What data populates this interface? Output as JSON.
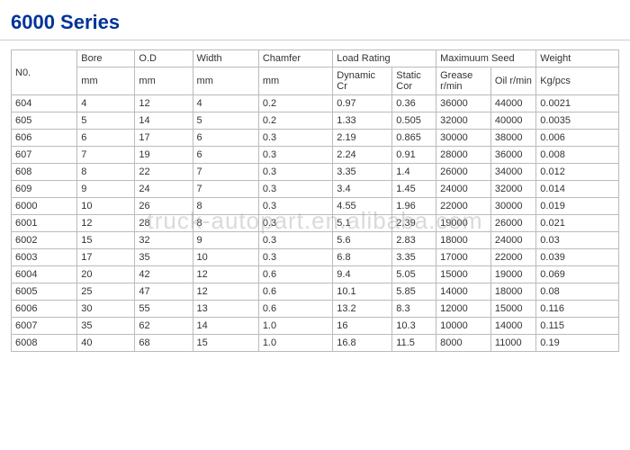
{
  "title": "6000 Series",
  "watermark": "truck-autopart.en.alibaba.com",
  "table": {
    "type": "table",
    "background_color": "#ffffff",
    "border_color": "#bbbbbb",
    "text_color": "#333333",
    "font_size_pt": 8,
    "header_row1": [
      "N0.",
      "Bore",
      "O.D",
      "Width",
      "Chamfer",
      "Load Rating",
      "",
      "Maximuum Seed",
      "",
      "Weight"
    ],
    "header_row2": [
      "",
      "mm",
      "mm",
      "mm",
      "mm",
      "Dynamic Cr",
      "Static Cor",
      "Grease r/min",
      "Oil r/min",
      "Kg/pcs"
    ],
    "colspans_row1": [
      1,
      1,
      1,
      1,
      1,
      2,
      0,
      2,
      0,
      1
    ],
    "col_widths_pct": [
      8,
      7,
      7,
      8,
      9,
      11,
      10,
      11,
      11,
      10
    ],
    "rows": [
      [
        "604",
        "4",
        "12",
        "4",
        "0.2",
        "0.97",
        "0.36",
        "36000",
        "44000",
        "0.0021"
      ],
      [
        "605",
        "5",
        "14",
        "5",
        "0.2",
        "1.33",
        "0.505",
        "32000",
        "40000",
        "0.0035"
      ],
      [
        "606",
        "6",
        "17",
        "6",
        "0.3",
        "2.19",
        "0.865",
        "30000",
        "38000",
        "0.006"
      ],
      [
        "607",
        "7",
        "19",
        "6",
        "0.3",
        "2.24",
        "0.91",
        "28000",
        "36000",
        "0.008"
      ],
      [
        "608",
        "8",
        "22",
        "7",
        "0.3",
        "3.35",
        "1.4",
        "26000",
        "34000",
        "0.012"
      ],
      [
        "609",
        "9",
        "24",
        "7",
        "0.3",
        "3.4",
        "1.45",
        "24000",
        "32000",
        "0.014"
      ],
      [
        "6000",
        "10",
        "26",
        "8",
        "0.3",
        "4.55",
        "1.96",
        "22000",
        "30000",
        "0.019"
      ],
      [
        "6001",
        "12",
        "28",
        "8",
        "0.3",
        "5.1",
        "2.39",
        "19000",
        "26000",
        "0.021"
      ],
      [
        "6002",
        "15",
        "32",
        "9",
        "0.3",
        "5.6",
        "2.83",
        "18000",
        "24000",
        "0.03"
      ],
      [
        "6003",
        "17",
        "35",
        "10",
        "0.3",
        "6.8",
        "3.35",
        "17000",
        "22000",
        "0.039"
      ],
      [
        "6004",
        "20",
        "42",
        "12",
        "0.6",
        "9.4",
        "5.05",
        "15000",
        "19000",
        "0.069"
      ],
      [
        "6005",
        "25",
        "47",
        "12",
        "0.6",
        "10.1",
        "5.85",
        "14000",
        "18000",
        "0.08"
      ],
      [
        "6006",
        "30",
        "55",
        "13",
        "0.6",
        "13.2",
        "8.3",
        "12000",
        "15000",
        "0.116"
      ],
      [
        "6007",
        "35",
        "62",
        "14",
        "1.0",
        "16",
        "10.3",
        "10000",
        "14000",
        "0.115"
      ],
      [
        "6008",
        "40",
        "68",
        "15",
        "1.0",
        "16.8",
        "11.5",
        "8000",
        "11000",
        "0.19"
      ]
    ]
  }
}
